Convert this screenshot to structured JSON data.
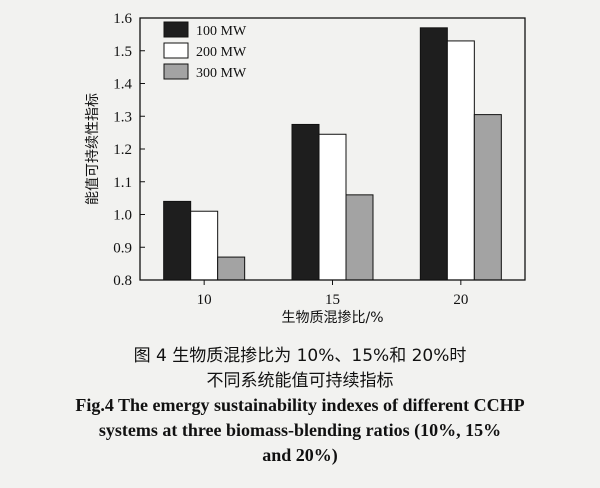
{
  "chart_data": {
    "type": "bar",
    "categories": [
      "10",
      "15",
      "20"
    ],
    "series": [
      {
        "name": "100 MW",
        "values": [
          1.04,
          1.275,
          1.57
        ],
        "color": "#1e1e1e"
      },
      {
        "name": "200 MW",
        "values": [
          1.01,
          1.245,
          1.53
        ],
        "color": "#ffffff"
      },
      {
        "name": "300 MW",
        "values": [
          0.87,
          1.06,
          1.305
        ],
        "color": "#a3a3a3"
      }
    ],
    "xlabel": "生物质混掺比/%",
    "ylabel": "能值可持续性指标",
    "ylim": [
      0.8,
      1.6
    ],
    "yticks": [
      "0.8",
      "0.9",
      "1.0",
      "1.1",
      "1.2",
      "1.3",
      "1.4",
      "1.5",
      "1.6"
    ],
    "legend_position": "top-left"
  },
  "caption": {
    "zh_line1": "图 4  生物质混掺比为 10%、15%和 20%时",
    "zh_line2": "不同系统能值可持续指标",
    "en_line1": "Fig.4 The emergy sustainability indexes of different CCHP",
    "en_line2": "systems at three biomass-blending ratios (10%, 15%",
    "en_line3": "and 20%)"
  }
}
